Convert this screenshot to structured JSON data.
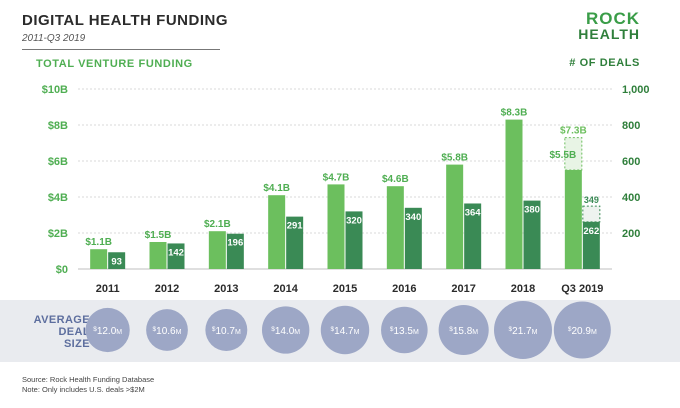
{
  "header": {
    "title": "DIGITAL HEALTH FUNDING",
    "subtitle": "2011-Q3 2019",
    "logo_line1": "ROCK",
    "logo_line2": "HEALTH"
  },
  "colors": {
    "funding_bar": "#6cbf5e",
    "deals_bar": "#3a8a55",
    "funding_label": "#4fae52",
    "deals_label": "#2f7f3b",
    "circle": "#9da7c6",
    "circle_text": "#ffffff",
    "projection_fill": "#e8f4e5"
  },
  "chart_data": {
    "type": "bar",
    "left_axis_label": "TOTAL VENTURE FUNDING",
    "right_axis_label": "# OF DEALS",
    "left_ticks": [
      "$0",
      "$2B",
      "$4B",
      "$6B",
      "$8B",
      "$10B"
    ],
    "right_ticks": [
      "200",
      "400",
      "600",
      "800",
      "1,000"
    ],
    "left_ylim": [
      0,
      10
    ],
    "right_ylim": [
      0,
      1000
    ],
    "categories": [
      "2011",
      "2012",
      "2013",
      "2014",
      "2015",
      "2016",
      "2017",
      "2018",
      "Q3 2019"
    ],
    "series": [
      {
        "name": "TOTAL VENTURE FUNDING",
        "values": [
          1.1,
          1.5,
          2.1,
          4.1,
          4.7,
          4.6,
          5.8,
          8.3,
          5.5
        ],
        "labels": [
          "$1.1B",
          "$1.5B",
          "$2.1B",
          "$4.1B",
          "$4.7B",
          "$4.6B",
          "$5.8B",
          "$8.3B",
          "$5.5B"
        ]
      },
      {
        "name": "# OF DEALS",
        "values": [
          93,
          142,
          196,
          291,
          320,
          340,
          364,
          380,
          262
        ],
        "labels": [
          "93",
          "142",
          "196",
          "291",
          "320",
          "340",
          "364",
          "380",
          "262"
        ]
      }
    ],
    "projection": {
      "category": "Q3 2019",
      "funding_value": 7.3,
      "funding_label": "$7.3B",
      "deals_value": 349,
      "deals_label": "349"
    },
    "avg_deal_size": {
      "label_line1": "AVERAGE",
      "label_line2": "DEAL",
      "label_line3": "SIZE",
      "values": [
        12.0,
        10.6,
        10.7,
        14.0,
        14.7,
        13.5,
        15.8,
        21.7,
        20.9
      ],
      "labels": [
        "12.0",
        "10.6",
        "10.7",
        "14.0",
        "14.7",
        "13.5",
        "15.8",
        "21.7",
        "20.9"
      ],
      "prefix": "$",
      "unit": "M"
    }
  },
  "footer": {
    "source": "Source: Rock Health Funding Database",
    "note": "Note: Only includes U.S. deals >$2M"
  }
}
